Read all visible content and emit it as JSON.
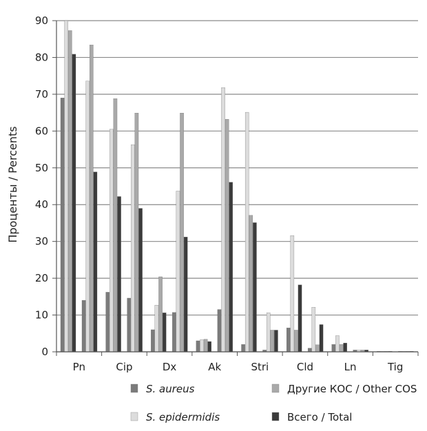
{
  "chart_data": {
    "type": "bar",
    "title": "",
    "xlabel": "",
    "ylabel": "Проценты / Percents",
    "ylim": [
      0,
      90
    ],
    "yticks": [
      0,
      10,
      20,
      30,
      40,
      50,
      60,
      70,
      80,
      90
    ],
    "grid": "horizontal",
    "legend_position": "bottom",
    "categories": [
      "Pn",
      "Cip",
      "Dx",
      "Ak",
      "Stri",
      "Cld",
      "Ln",
      "Tig"
    ],
    "series": [
      {
        "name": "S. aureus",
        "italic": true,
        "color": "#7b7b7b",
        "values": [
          [
            69,
            14
          ],
          [
            16.2,
            14.6
          ],
          [
            6,
            10.7
          ],
          [
            3,
            11.5
          ],
          [
            2,
            0.5
          ],
          [
            6.5,
            1
          ],
          [
            2,
            0.5
          ],
          [
            0,
            0
          ]
        ]
      },
      {
        "name": "S. epidermidis",
        "italic": true,
        "color": "#dcdcdc",
        "values": [
          [
            90,
            73.6
          ],
          [
            60.5,
            56.3
          ],
          [
            12.7,
            43.7
          ],
          [
            3.3,
            71.8
          ],
          [
            65.1,
            10.6
          ],
          [
            31.6,
            12.1
          ],
          [
            4.4,
            0.5
          ],
          [
            0,
            0
          ]
        ]
      },
      {
        "name": "Другие КОС / Other COS",
        "italic": false,
        "color": "#a9a9a9",
        "values": [
          [
            87.3,
            83.4
          ],
          [
            68.8,
            64.9
          ],
          [
            20.4,
            64.9
          ],
          [
            3.4,
            63.2
          ],
          [
            37.1,
            5.9
          ],
          [
            5.9,
            1.9
          ],
          [
            2,
            0.5
          ],
          [
            0,
            0
          ]
        ]
      },
      {
        "name": "Всего / Total",
        "italic": false,
        "color": "#3b3b3b",
        "values": [
          [
            80.9,
            48.9
          ],
          [
            42.2,
            39
          ],
          [
            10.6,
            31.2
          ],
          [
            2.8,
            46.1
          ],
          [
            35.1,
            5.9
          ],
          [
            18.2,
            7.4
          ],
          [
            2.4,
            0.5
          ],
          [
            0,
            0
          ]
        ]
      }
    ]
  }
}
